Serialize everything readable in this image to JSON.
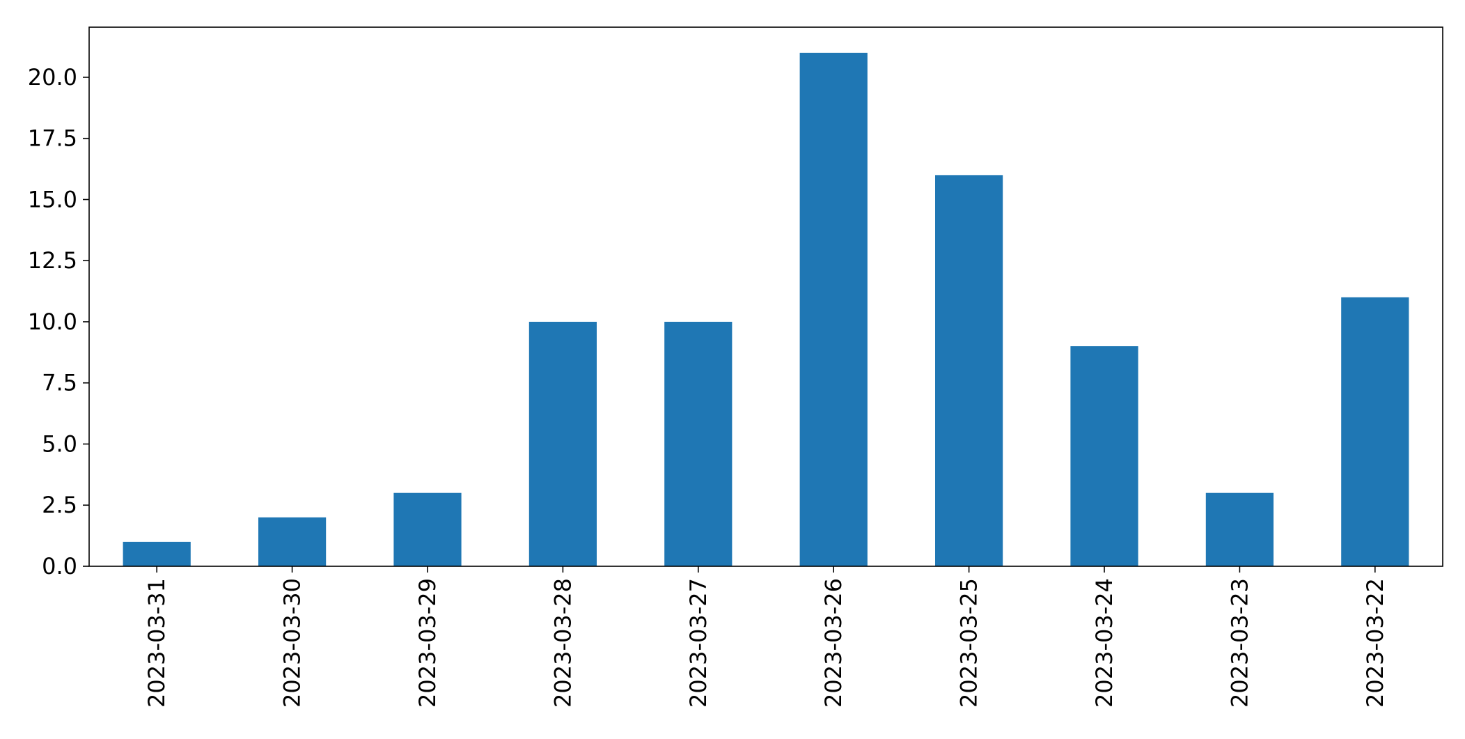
{
  "chart_data": {
    "type": "bar",
    "categories": [
      "2023-03-31",
      "2023-03-30",
      "2023-03-29",
      "2023-03-28",
      "2023-03-27",
      "2023-03-26",
      "2023-03-25",
      "2023-03-24",
      "2023-03-23",
      "2023-03-22"
    ],
    "values": [
      1,
      2,
      3,
      10,
      10,
      21,
      16,
      9,
      3,
      11
    ],
    "ylim": [
      0,
      22.05
    ],
    "yticks": [
      "0.0",
      "2.5",
      "5.0",
      "7.5",
      "10.0",
      "12.5",
      "15.0",
      "17.5",
      "20.0"
    ],
    "xlabel_rotation": "vertical",
    "grid": false,
    "colors": {
      "bar": "#1f77b4",
      "axis": "#000000"
    }
  }
}
